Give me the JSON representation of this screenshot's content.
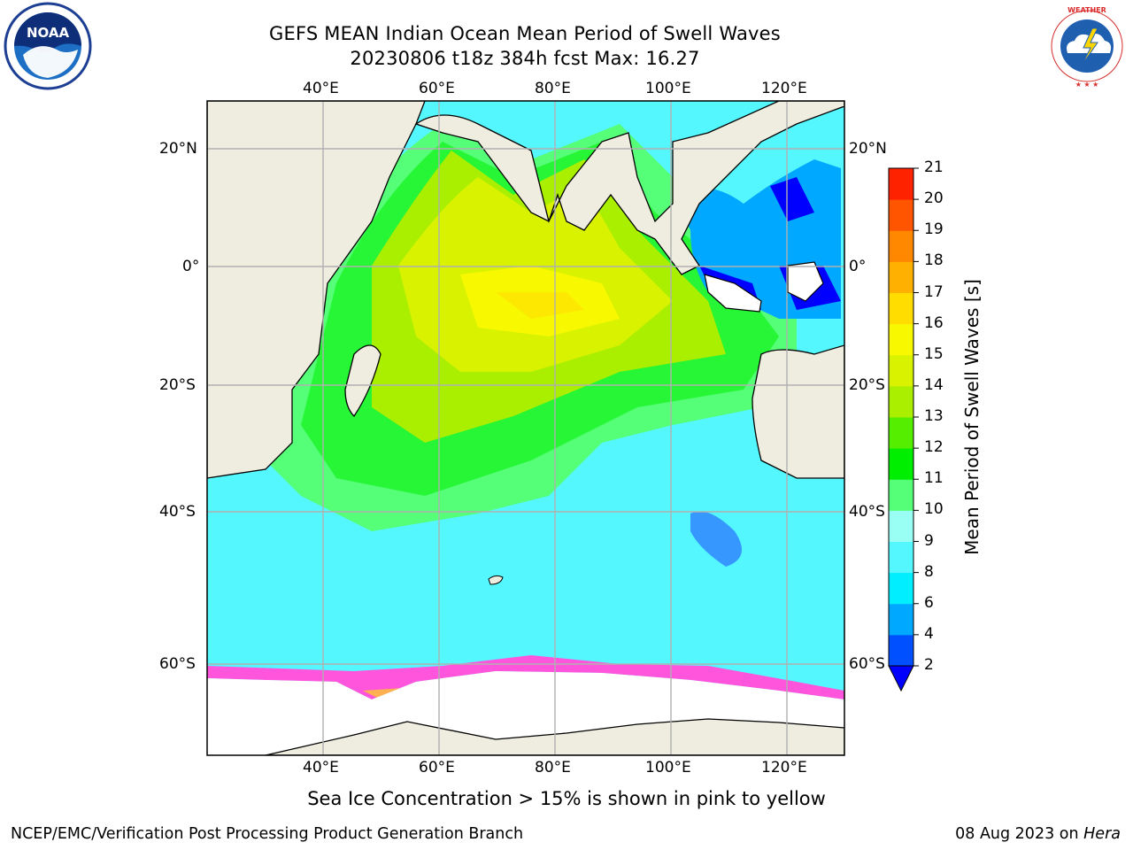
{
  "header": {
    "title_line1": "GEFS MEAN Indian Ocean Mean Period of Swell Waves",
    "title_line2": "20230806 t18z 384h fcst   Max: 16.27"
  },
  "logos": {
    "left": {
      "name": "noaa-logo",
      "text": "NOAA"
    },
    "right": {
      "name": "nws-logo",
      "text": "NATIONAL WEATHER SERVICE"
    }
  },
  "map": {
    "lon_labels": [
      "40°E",
      "60°E",
      "80°E",
      "100°E",
      "120°E"
    ],
    "lat_labels_left": [
      "20°N",
      "0°",
      "20°S",
      "40°S",
      "60°S"
    ],
    "lat_labels_right": [
      "20°N",
      "0°",
      "20°S",
      "40°S",
      "60°S"
    ],
    "colors": {
      "land": "#eeeddf",
      "ice": "#ffffff",
      "grid": "#b0b0b0"
    }
  },
  "colorbar": {
    "title": "Mean Period of Swell Waves [s]",
    "ticks": [
      "2",
      "4",
      "6",
      "8",
      "9",
      "10",
      "11",
      "12",
      "13",
      "14",
      "15",
      "16",
      "17",
      "18",
      "19",
      "20",
      "21"
    ],
    "colors": [
      "#0050ff",
      "#00a8ff",
      "#00eeff",
      "#55f7ff",
      "#99fff4",
      "#55ff77",
      "#00ee00",
      "#55ee00",
      "#aaee00",
      "#d8f200",
      "#f8f800",
      "#ffdd00",
      "#ffb000",
      "#ff8800",
      "#ff5500",
      "#ff2200",
      "#ff0000"
    ],
    "extend_color": "#0000ff"
  },
  "caption": "Sea Ice Concentration > 15% is shown in pink to yellow",
  "footer": {
    "left": "NCEP/EMC/Verification Post Processing Product Generation Branch",
    "right_date": "08 Aug 2023 on ",
    "right_machine": "Hera"
  }
}
